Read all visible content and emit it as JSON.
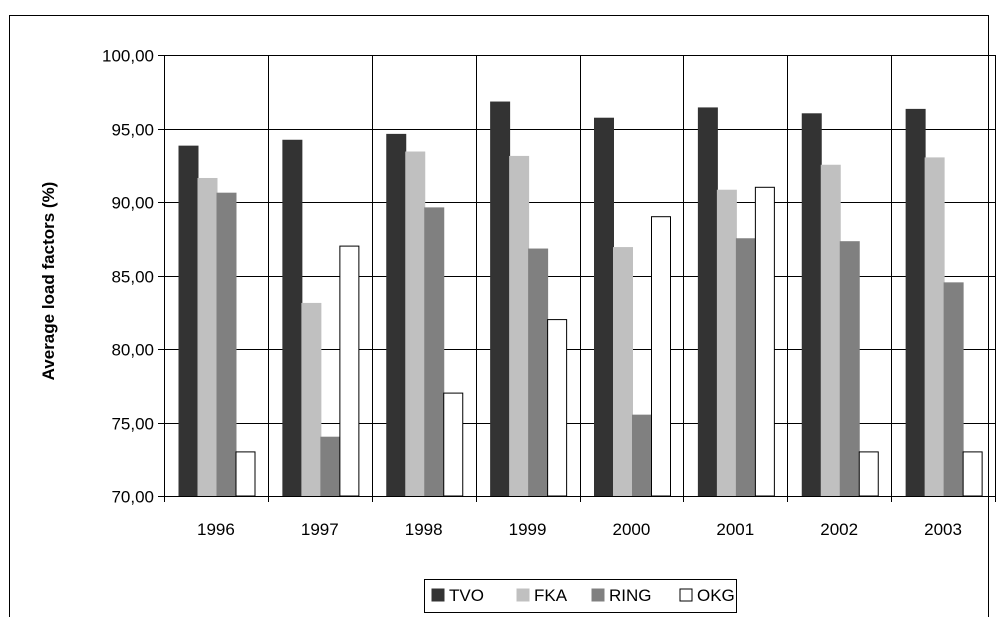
{
  "chart_data": {
    "type": "bar",
    "title": "",
    "xlabel": "",
    "ylabel": "Average load factors (%)",
    "ylim": [
      70,
      100
    ],
    "yticks": [
      "70,00",
      "75,00",
      "80,00",
      "85,00",
      "90,00",
      "95,00",
      "100,00"
    ],
    "categories": [
      "1996",
      "1997",
      "1998",
      "1999",
      "2000",
      "2001",
      "2002",
      "2003"
    ],
    "grid": "vertical and horizontal gridlines",
    "legend_position": "bottom",
    "series": [
      {
        "name": "TVO",
        "color": "#333333",
        "values": [
          93.8,
          94.2,
          94.6,
          96.8,
          95.7,
          96.4,
          96.0,
          96.3
        ]
      },
      {
        "name": "FKA",
        "color": "#c0c0c0",
        "values": [
          91.6,
          83.1,
          93.4,
          93.1,
          86.9,
          90.8,
          92.5,
          93.0
        ]
      },
      {
        "name": "RING",
        "color": "#808080",
        "values": [
          90.6,
          74.0,
          89.6,
          86.8,
          75.5,
          87.5,
          87.3,
          84.5
        ]
      },
      {
        "name": "OKG",
        "color": "#ffffff",
        "values": [
          73.0,
          87.0,
          77.0,
          82.0,
          89.0,
          91.0,
          73.0,
          73.0
        ]
      }
    ]
  }
}
